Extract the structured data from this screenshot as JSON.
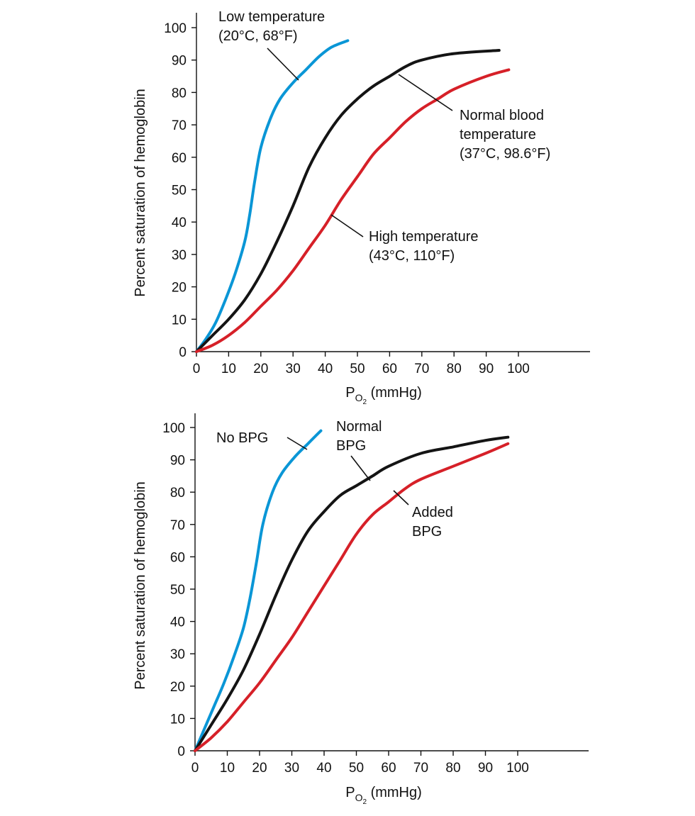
{
  "colors": {
    "blue": "#0a96d6",
    "black": "#141414",
    "red": "#d62028"
  },
  "chart_data": [
    {
      "type": "line",
      "ylabel": "Percent saturation of hemoglobin",
      "xlabel": {
        "main": "P",
        "sub": "O",
        "subsub": "2",
        "unit": " (mmHg)"
      },
      "xlim": [
        0,
        100
      ],
      "ylim": [
        0,
        100
      ],
      "xticks": [
        0,
        10,
        20,
        30,
        40,
        50,
        60,
        70,
        80,
        90,
        100
      ],
      "yticks": [
        0,
        10,
        20,
        30,
        40,
        50,
        60,
        70,
        80,
        90,
        100
      ],
      "series": [
        {
          "color_key": "blue",
          "label": [
            "Low temperature",
            "(20°C, 68°F)"
          ],
          "x": [
            0,
            3,
            6,
            9,
            12,
            15,
            16.5,
            18,
            20,
            23,
            26,
            30,
            34,
            38,
            42,
            47
          ],
          "y": [
            0,
            4,
            9,
            16,
            24,
            34,
            42,
            52,
            63,
            72,
            78,
            83,
            87,
            91,
            94,
            96
          ]
        },
        {
          "color_key": "black",
          "label": [
            "Normal blood",
            "temperature",
            "(37°C, 98.6°F)"
          ],
          "x": [
            0,
            5,
            10,
            15,
            20,
            25,
            30,
            35,
            40,
            45,
            50,
            55,
            60,
            65,
            70,
            80,
            94
          ],
          "y": [
            0,
            5,
            10,
            16,
            24,
            34,
            45,
            57,
            66,
            73,
            78,
            82,
            85,
            88,
            90,
            92,
            93
          ]
        },
        {
          "color_key": "red",
          "label": [
            "High temperature",
            "(43°C, 110°F)"
          ],
          "x": [
            0,
            5,
            10,
            15,
            20,
            25,
            30,
            35,
            40,
            45,
            50,
            55,
            60,
            65,
            70,
            75,
            80,
            90,
            97
          ],
          "y": [
            0,
            2,
            5,
            9,
            14,
            19,
            25,
            32,
            39,
            47,
            54,
            61,
            66,
            71,
            75,
            78,
            81,
            85,
            87
          ]
        }
      ]
    },
    {
      "type": "line",
      "ylabel": "Percent saturation of hemoglobin",
      "xlabel": {
        "main": "P",
        "sub": "O",
        "subsub": "2",
        "unit": " (mmHg)"
      },
      "xlim": [
        0,
        100
      ],
      "ylim": [
        0,
        100
      ],
      "xticks": [
        0,
        10,
        20,
        30,
        40,
        50,
        60,
        70,
        80,
        90,
        100
      ],
      "yticks": [
        0,
        10,
        20,
        30,
        40,
        50,
        60,
        70,
        80,
        90,
        100
      ],
      "series": [
        {
          "color_key": "blue",
          "label": [
            "No BPG"
          ],
          "x": [
            0,
            3,
            6,
            9,
            12,
            15,
            17,
            19,
            21,
            24,
            27,
            31,
            35,
            39
          ],
          "y": [
            0,
            7,
            14,
            21,
            29,
            38,
            47,
            58,
            70,
            80,
            86,
            91,
            95,
            99
          ]
        },
        {
          "color_key": "black",
          "label": [
            "Normal",
            "BPG"
          ],
          "x": [
            0,
            5,
            10,
            15,
            20,
            25,
            30,
            35,
            40,
            45,
            50,
            55,
            60,
            70,
            80,
            90,
            97
          ],
          "y": [
            0,
            8,
            16,
            25,
            36,
            48,
            59,
            68,
            74,
            79,
            82,
            85,
            88,
            92,
            94,
            96,
            97
          ]
        },
        {
          "color_key": "red",
          "label": [
            "Added",
            "BPG"
          ],
          "x": [
            0,
            5,
            10,
            15,
            20,
            25,
            30,
            35,
            40,
            45,
            50,
            55,
            60,
            65,
            70,
            80,
            90,
            97
          ],
          "y": [
            0,
            4,
            9,
            15,
            21,
            28,
            35,
            43,
            51,
            59,
            67,
            73,
            77,
            81,
            84,
            88,
            92,
            95
          ]
        }
      ]
    }
  ]
}
